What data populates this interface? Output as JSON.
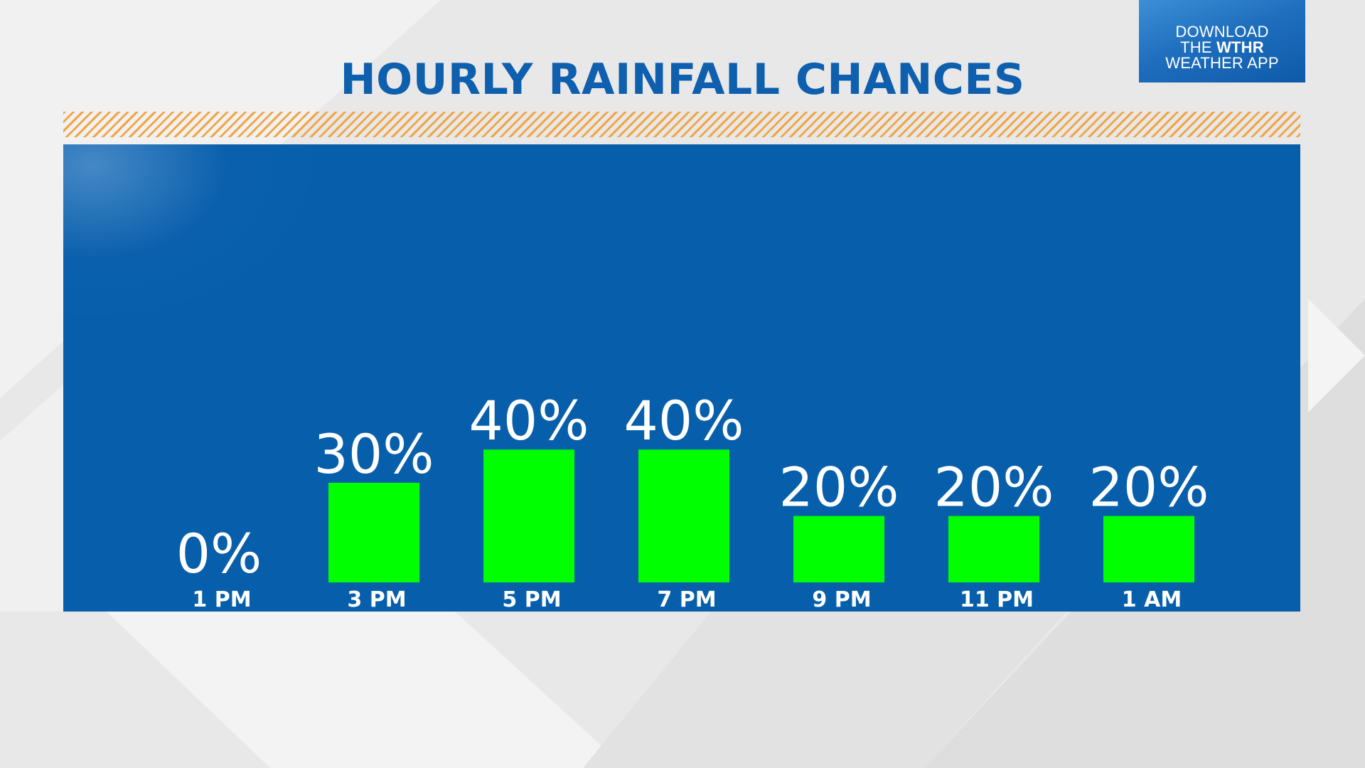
{
  "header": {
    "title": "HOURLY RAINFALL CHANCES"
  },
  "badge": {
    "line1": "DOWNLOAD",
    "line2_prefix": "THE ",
    "line2_brand": "WTHR",
    "line3": "WEATHER APP"
  },
  "colors": {
    "panel": "#075fab",
    "bar": "#00ff00",
    "title": "#0e5fae",
    "stripe": "#f2a544"
  },
  "chart_data": {
    "type": "bar",
    "title": "HOURLY RAINFALL CHANCES",
    "xlabel": "",
    "ylabel": "",
    "unit": "%",
    "grid": false,
    "legend": "none",
    "ylim": [
      0,
      100
    ],
    "categories": [
      "1 PM",
      "3 PM",
      "5 PM",
      "7 PM",
      "9 PM",
      "11 PM",
      "1 AM"
    ],
    "values": [
      0,
      30,
      40,
      40,
      20,
      20,
      20
    ],
    "data_labels": [
      "0%",
      "30%",
      "40%",
      "40%",
      "20%",
      "20%",
      "20%"
    ]
  }
}
